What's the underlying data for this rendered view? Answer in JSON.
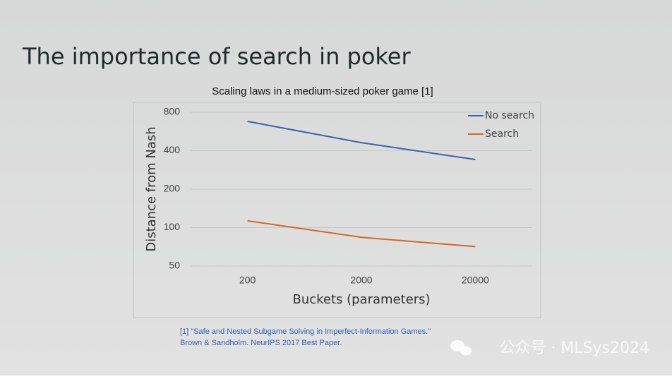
{
  "slide_title": "The importance of search in poker",
  "chart_data": {
    "type": "line",
    "title": "Scaling laws in a medium-sized poker game [1]",
    "x_label": "Buckets (parameters)",
    "y_label": "Distance from Nash",
    "categories": [
      "200",
      "2000",
      "20000"
    ],
    "series": [
      {
        "name": "No search",
        "color": "#3c62ae",
        "values": [
          678,
          462,
          341
        ]
      },
      {
        "name": "Search",
        "color": "#d2691e",
        "values": [
          113,
          84,
          71
        ]
      }
    ],
    "ylim": [
      50,
      800
    ],
    "yticks": [
      50,
      100,
      200,
      400,
      800
    ],
    "log_scale": true,
    "grid": true,
    "legend": "upper right"
  },
  "footnote": [
    "[1] \"Safe and Nested Subgame Solving in Imperfect-Information Games.\"",
    "Brown & Sandholm. NeurIPS 2017 Best Paper."
  ],
  "watermark": "公众号 · MLSys2024"
}
